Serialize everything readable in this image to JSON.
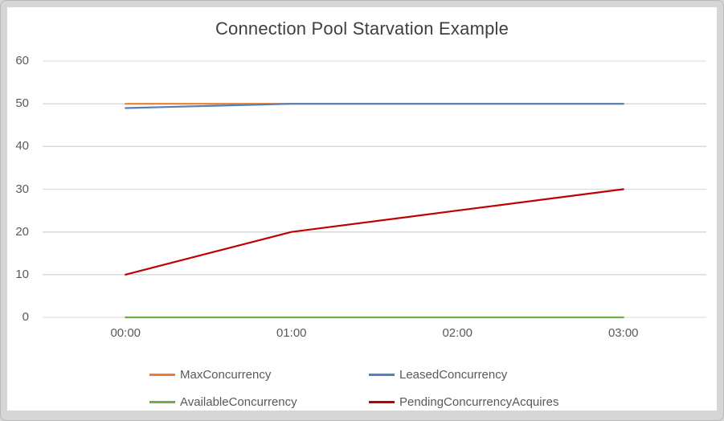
{
  "window": {
    "matte_color": "#d5d5d5",
    "panel_color": "#ffffff"
  },
  "chart_data": {
    "type": "line",
    "title": "Connection Pool Starvation Example",
    "categories": [
      "00:00",
      "01:00",
      "02:00",
      "03:00"
    ],
    "series": [
      {
        "name": "MaxConcurrency",
        "color": "#ED7D31",
        "values": [
          50,
          50,
          50,
          50
        ]
      },
      {
        "name": "LeasedConcurrency",
        "color": "#4F81BD",
        "values": [
          49,
          50,
          50,
          50
        ]
      },
      {
        "name": "AvailableConcurrency",
        "color": "#70AD47",
        "values": [
          0,
          0,
          0,
          0
        ]
      },
      {
        "name": "PendingConcurrencyAcquires",
        "color": "#C00000",
        "values": [
          10,
          20,
          25,
          30
        ]
      }
    ],
    "ylim": [
      0,
      60
    ],
    "y_ticks": [
      0,
      10,
      20,
      30,
      40,
      50,
      60
    ],
    "xlabel": "",
    "ylabel": "",
    "grid": true,
    "gridline_color": "#D9D9D9",
    "tick_label_color": "#595959",
    "title_color": "#3F3F3F",
    "legend_position": "bottom"
  }
}
